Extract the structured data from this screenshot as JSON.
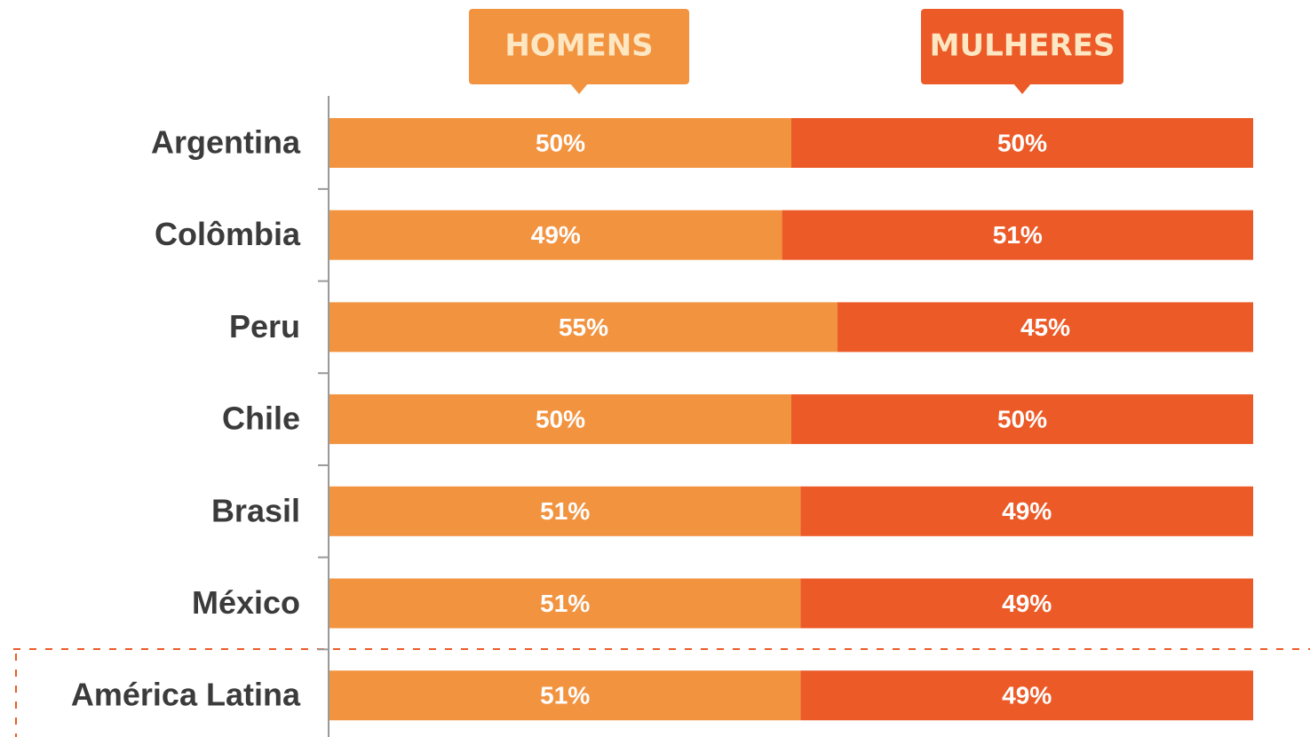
{
  "chart_data": {
    "type": "stacked-bar-horizontal",
    "categories": [
      "Argentina",
      "Colômbia",
      "Peru",
      "Chile",
      "Brasil",
      "México",
      "América Latina"
    ],
    "xlim": [
      0,
      100
    ],
    "series": [
      {
        "name": "HOMENS",
        "color": "#f29340",
        "values": [
          50,
          49,
          55,
          50,
          51,
          51,
          51
        ],
        "value_labels": [
          "50%",
          "49%",
          "55%",
          "50%",
          "51%",
          "51%",
          "51%"
        ]
      },
      {
        "name": "MULHERES",
        "color": "#ec5a27",
        "values": [
          50,
          51,
          45,
          50,
          49,
          49,
          49
        ],
        "value_labels": [
          "50%",
          "51%",
          "45%",
          "50%",
          "49%",
          "49%",
          "49%"
        ]
      }
    ]
  }
}
